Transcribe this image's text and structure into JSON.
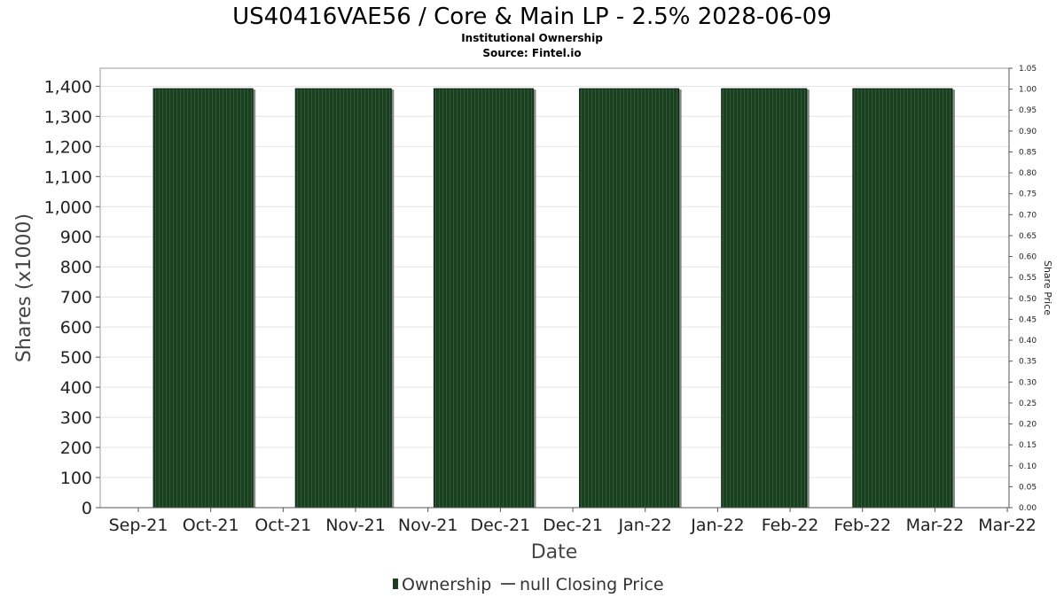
{
  "chart_data": {
    "type": "bar",
    "title": "US40416VAE56 / Core & Main LP - 2.5% 2028-06-09",
    "subtitle_lines": [
      "Institutional Ownership",
      "Source: Fintel.io"
    ],
    "xlabel": "Date",
    "ylabel": "Shares (x1000)",
    "y2label": "Share Price",
    "ylim": [
      0,
      1460
    ],
    "y2lim": [
      0,
      1.05
    ],
    "yticks": [
      "0",
      "100",
      "200",
      "300",
      "400",
      "500",
      "600",
      "700",
      "800",
      "900",
      "1,000",
      "1,100",
      "1,200",
      "1,300",
      "1,400"
    ],
    "y2ticks": [
      "0.00",
      "0.05",
      "0.10",
      "0.15",
      "0.20",
      "0.25",
      "0.30",
      "0.35",
      "0.40",
      "0.45",
      "0.50",
      "0.55",
      "0.60",
      "0.65",
      "0.70",
      "0.75",
      "0.80",
      "0.85",
      "0.90",
      "0.95",
      "1.00",
      "1.05"
    ],
    "xticks": [
      "Sep-21",
      "Oct-21",
      "Oct-21",
      "Nov-21",
      "Nov-21",
      "Dec-21",
      "Dec-21",
      "Jan-22",
      "Jan-22",
      "Feb-22",
      "Feb-22",
      "Mar-22",
      "Mar-22"
    ],
    "series": [
      {
        "name": "Ownership",
        "color": "#1a4021",
        "bars": [
          {
            "start": "2021-09-30",
            "end": "2021-10-28",
            "value": 1392
          },
          {
            "start": "2021-11-09",
            "end": "2021-12-06",
            "value": 1392
          },
          {
            "start": "2021-12-18",
            "end": "2022-01-15",
            "value": 1392
          },
          {
            "start": "2022-01-28",
            "end": "2022-02-25",
            "value": 1392
          },
          {
            "start": "2022-03-09",
            "end": "2022-04-02",
            "value": 1392
          },
          {
            "start": "2022-04-15",
            "end": "2022-05-13",
            "value": 1392
          }
        ]
      },
      {
        "name": "null Closing Price",
        "color": "#555555",
        "values": []
      }
    ],
    "grid": true,
    "legend_position": "bottom-center"
  }
}
